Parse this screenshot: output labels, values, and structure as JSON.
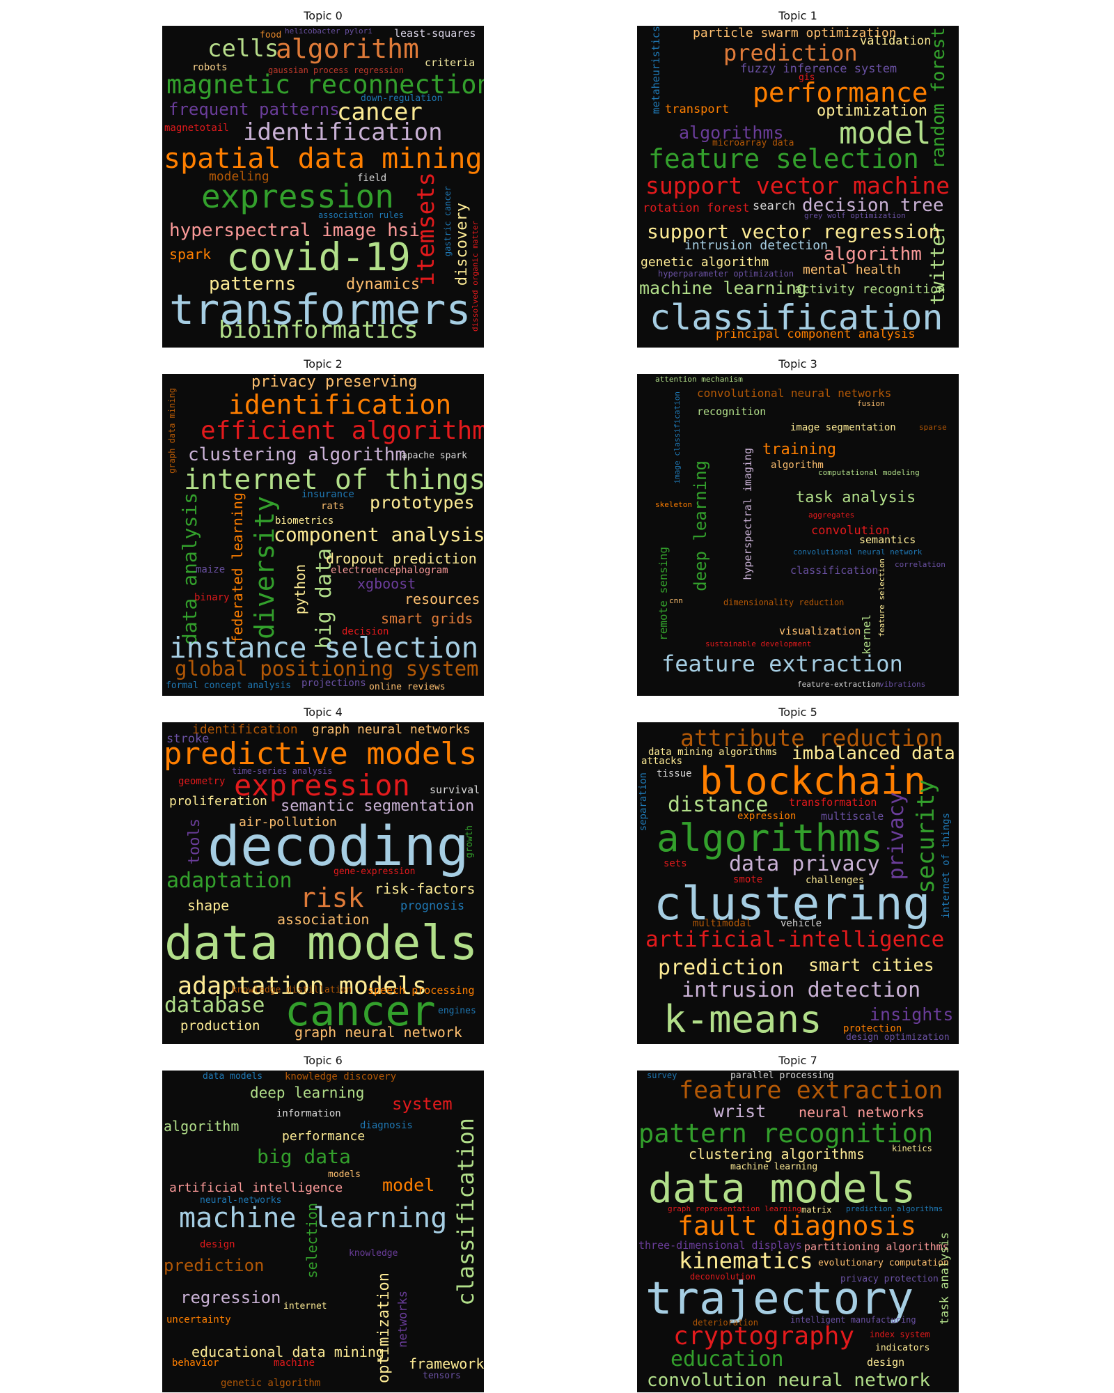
{
  "colors": {
    "background": "#0b0b0b",
    "figure": "#ffffff"
  },
  "panels": [
    {
      "title": "Topic 0",
      "words": [
        {
          "t": "food",
          "c": "#e6892b"
        },
        {
          "t": "helicobacter pylori",
          "c": "#6a51a3"
        },
        {
          "t": "least-squares",
          "c": "#ddd8ea"
        },
        {
          "t": "cells",
          "c": "#b7dd8b"
        },
        {
          "t": "algorithm",
          "c": "#e07b39"
        },
        {
          "t": "robots",
          "c": "#f7d08a"
        },
        {
          "t": "gaussian process regression",
          "c": "#c0392b"
        },
        {
          "t": "criteria",
          "c": "#f3e9a0"
        },
        {
          "t": "magnetic reconnection",
          "c": "#33a02c"
        },
        {
          "t": "down-regulation",
          "c": "#1f78b4"
        },
        {
          "t": "frequent patterns",
          "c": "#6a3d9a"
        },
        {
          "t": "cancer",
          "c": "#fdeb95"
        },
        {
          "t": "magnetotail",
          "c": "#e31a1c"
        },
        {
          "t": "identification",
          "c": "#cab2d6"
        },
        {
          "t": "spatial data mining",
          "c": "#ff7f00"
        },
        {
          "t": "modeling",
          "c": "#b35806"
        },
        {
          "t": "field",
          "c": "#d9d9d9"
        },
        {
          "t": "expression",
          "c": "#33a02c"
        },
        {
          "t": "itemsets",
          "c": "#e31a1c"
        },
        {
          "t": "gastric cancer",
          "c": "#1f78b4"
        },
        {
          "t": "association rules",
          "c": "#1f78b4"
        },
        {
          "t": "hyperspectral image hsi",
          "c": "#fb9a99"
        },
        {
          "t": "discovery",
          "c": "#fdeb95"
        },
        {
          "t": "spark",
          "c": "#ff7f00"
        },
        {
          "t": "covid-19",
          "c": "#b2df8a"
        },
        {
          "t": "dissolved organic matter",
          "c": "#e31a1c"
        },
        {
          "t": "patterns",
          "c": "#fdeb95"
        },
        {
          "t": "dynamics",
          "c": "#fdbf6f"
        },
        {
          "t": "transformers",
          "c": "#a6cee3"
        },
        {
          "t": "bioinformatics",
          "c": "#b2df8a"
        }
      ]
    },
    {
      "title": "Topic 1",
      "words": [
        {
          "t": "particle swarm optimization",
          "c": "#fdbf6f"
        },
        {
          "t": "validation",
          "c": "#fdeb95"
        },
        {
          "t": "metaheuristics",
          "c": "#1f78b4"
        },
        {
          "t": "prediction",
          "c": "#e07b39"
        },
        {
          "t": "random forest",
          "c": "#33a02c"
        },
        {
          "t": "fuzzy inference system",
          "c": "#6a51a3"
        },
        {
          "t": "gis",
          "c": "#e31a1c"
        },
        {
          "t": "performance",
          "c": "#ff7f00"
        },
        {
          "t": "transport",
          "c": "#ff7f00"
        },
        {
          "t": "optimization",
          "c": "#fdeb95"
        },
        {
          "t": "algorithms",
          "c": "#6a3d9a"
        },
        {
          "t": "microarray data",
          "c": "#b35806"
        },
        {
          "t": "model",
          "c": "#b2df8a"
        },
        {
          "t": "feature selection",
          "c": "#33a02c"
        },
        {
          "t": "support vector machine",
          "c": "#e31a1c"
        },
        {
          "t": "rotation forest",
          "c": "#e31a1c"
        },
        {
          "t": "search",
          "c": "#d9d9d9"
        },
        {
          "t": "decision tree",
          "c": "#cab2d6"
        },
        {
          "t": "grey wolf optimization",
          "c": "#6a51a3"
        },
        {
          "t": "twitter",
          "c": "#b2df8a"
        },
        {
          "t": "support vector regression",
          "c": "#fdeb95"
        },
        {
          "t": "intrusion detection",
          "c": "#a6cee3"
        },
        {
          "t": "genetic algorithm",
          "c": "#fdeb95"
        },
        {
          "t": "algorithm",
          "c": "#fb9a99"
        },
        {
          "t": "hyperparameter optimization",
          "c": "#6a51a3"
        },
        {
          "t": "mental health",
          "c": "#fdbf6f"
        },
        {
          "t": "machine learning",
          "c": "#b2df8a"
        },
        {
          "t": "activity recognition",
          "c": "#b2df8a"
        },
        {
          "t": "classification",
          "c": "#a6cee3"
        },
        {
          "t": "principal component analysis",
          "c": "#ff7f00"
        }
      ]
    },
    {
      "title": "Topic 2",
      "words": [
        {
          "t": "privacy preserving",
          "c": "#fdbf6f"
        },
        {
          "t": "identification",
          "c": "#ff7f00"
        },
        {
          "t": "efficient algorithm",
          "c": "#e31a1c"
        },
        {
          "t": "graph data mining",
          "c": "#b35806"
        },
        {
          "t": "clustering algorithm",
          "c": "#cab2d6"
        },
        {
          "t": "apache spark",
          "c": "#d9d9d9"
        },
        {
          "t": "internet of things",
          "c": "#b2df8a"
        },
        {
          "t": "insurance",
          "c": "#1f78b4"
        },
        {
          "t": "rats",
          "c": "#fdbf6f"
        },
        {
          "t": "prototypes",
          "c": "#fdeb95"
        },
        {
          "t": "data analysis",
          "c": "#33a02c"
        },
        {
          "t": "federated learning",
          "c": "#ff7f00"
        },
        {
          "t": "diversity",
          "c": "#33a02c"
        },
        {
          "t": "biometrics",
          "c": "#fdeb95"
        },
        {
          "t": "component analysis",
          "c": "#fdeb95"
        },
        {
          "t": "maize",
          "c": "#6a51a3"
        },
        {
          "t": "big data",
          "c": "#b2df8a"
        },
        {
          "t": "python",
          "c": "#fdeb95"
        },
        {
          "t": "dropout prediction",
          "c": "#fdeb95"
        },
        {
          "t": "electroencephalogram",
          "c": "#fb9a99"
        },
        {
          "t": "binary",
          "c": "#e31a1c"
        },
        {
          "t": "xgboost",
          "c": "#6a3d9a"
        },
        {
          "t": "resources",
          "c": "#fdbf6f"
        },
        {
          "t": "smart grids",
          "c": "#e07b39"
        },
        {
          "t": "decision",
          "c": "#e31a1c"
        },
        {
          "t": "instance selection",
          "c": "#a6cee3"
        },
        {
          "t": "global positioning system",
          "c": "#b35806"
        },
        {
          "t": "formal concept analysis",
          "c": "#1f78b4"
        },
        {
          "t": "projections",
          "c": "#6a51a3"
        },
        {
          "t": "online reviews",
          "c": "#fdbf6f"
        }
      ]
    },
    {
      "title": "Topic 3",
      "words": [
        {
          "t": "attention mechanism",
          "c": "#b2df8a"
        },
        {
          "t": "convolutional neural networks",
          "c": "#b35806"
        },
        {
          "t": "fusion",
          "c": "#fdbf6f"
        },
        {
          "t": "recognition",
          "c": "#b2df8a"
        },
        {
          "t": "image classification",
          "c": "#1f78b4"
        },
        {
          "t": "image segmentation",
          "c": "#fdeb95"
        },
        {
          "t": "sparse",
          "c": "#b35806"
        },
        {
          "t": "training",
          "c": "#ff7f00"
        },
        {
          "t": "algorithm",
          "c": "#fdbf6f"
        },
        {
          "t": "computational modeling",
          "c": "#b2df8a"
        },
        {
          "t": "deep learning",
          "c": "#33a02c"
        },
        {
          "t": "hyperspectral imaging",
          "c": "#cab2d6"
        },
        {
          "t": "skeleton",
          "c": "#ff7f00"
        },
        {
          "t": "task analysis",
          "c": "#b2df8a"
        },
        {
          "t": "aggregates",
          "c": "#e31a1c"
        },
        {
          "t": "convolution",
          "c": "#e31a1c"
        },
        {
          "t": "semantics",
          "c": "#fdeb95"
        },
        {
          "t": "convolutional neural network",
          "c": "#1f78b4"
        },
        {
          "t": "correlation",
          "c": "#6a51a3"
        },
        {
          "t": "remote sensing",
          "c": "#33a02c"
        },
        {
          "t": "classification",
          "c": "#6a51a3"
        },
        {
          "t": "feature selection",
          "c": "#fdeb95"
        },
        {
          "t": "cnn",
          "c": "#fdbf6f"
        },
        {
          "t": "dimensionality reduction",
          "c": "#b35806"
        },
        {
          "t": "kernel",
          "c": "#b2df8a"
        },
        {
          "t": "visualization",
          "c": "#fdbf6f"
        },
        {
          "t": "sustainable development",
          "c": "#e31a1c"
        },
        {
          "t": "feature extraction",
          "c": "#a6cee3"
        },
        {
          "t": "feature-extraction",
          "c": "#d9d9d9"
        },
        {
          "t": "vibrations",
          "c": "#6a51a3"
        }
      ]
    },
    {
      "title": "Topic 4",
      "words": [
        {
          "t": "identification",
          "c": "#b35806"
        },
        {
          "t": "graph neural networks",
          "c": "#fdbf6f"
        },
        {
          "t": "stroke",
          "c": "#6a51a3"
        },
        {
          "t": "predictive models",
          "c": "#ff7f00"
        },
        {
          "t": "time-series analysis",
          "c": "#6a51a3"
        },
        {
          "t": "geometry",
          "c": "#e31a1c"
        },
        {
          "t": "expression",
          "c": "#e31a1c"
        },
        {
          "t": "survival",
          "c": "#d9d9d9"
        },
        {
          "t": "proliferation",
          "c": "#fdeb95"
        },
        {
          "t": "semantic segmentation",
          "c": "#cab2d6"
        },
        {
          "t": "air-pollution",
          "c": "#fdbf6f"
        },
        {
          "t": "tools",
          "c": "#6a3d9a"
        },
        {
          "t": "decoding",
          "c": "#a6cee3"
        },
        {
          "t": "growth",
          "c": "#33a02c"
        },
        {
          "t": "gene-expression",
          "c": "#e31a1c"
        },
        {
          "t": "adaptation",
          "c": "#33a02c"
        },
        {
          "t": "risk",
          "c": "#e07b39"
        },
        {
          "t": "risk-factors",
          "c": "#fdeb95"
        },
        {
          "t": "shape",
          "c": "#fdeb95"
        },
        {
          "t": "prognosis",
          "c": "#1f78b4"
        },
        {
          "t": "association",
          "c": "#fdbf6f"
        },
        {
          "t": "data models",
          "c": "#b2df8a"
        },
        {
          "t": "adaptation models",
          "c": "#fdeb95"
        },
        {
          "t": "knowledge distillation",
          "c": "#b35806"
        },
        {
          "t": "speech processing",
          "c": "#ff7f00"
        },
        {
          "t": "database",
          "c": "#b2df8a"
        },
        {
          "t": "cancer",
          "c": "#33a02c"
        },
        {
          "t": "engines",
          "c": "#1f78b4"
        },
        {
          "t": "production",
          "c": "#fdeb95"
        },
        {
          "t": "graph neural network",
          "c": "#fdbf6f"
        }
      ]
    },
    {
      "title": "Topic 5",
      "words": [
        {
          "t": "attribute reduction",
          "c": "#b35806"
        },
        {
          "t": "data mining algorithms",
          "c": "#fdeb95"
        },
        {
          "t": "attacks",
          "c": "#fdeb95"
        },
        {
          "t": "imbalanced data",
          "c": "#fdeb95"
        },
        {
          "t": "tissue",
          "c": "#d9d9d9"
        },
        {
          "t": "blockchain",
          "c": "#ff7f00"
        },
        {
          "t": "separation",
          "c": "#1f78b4"
        },
        {
          "t": "distance",
          "c": "#b2df8a"
        },
        {
          "t": "transformation",
          "c": "#e31a1c"
        },
        {
          "t": "expression",
          "c": "#ff7f00"
        },
        {
          "t": "multiscale",
          "c": "#6a51a3"
        },
        {
          "t": "security",
          "c": "#33a02c"
        },
        {
          "t": "privacy",
          "c": "#6a3d9a"
        },
        {
          "t": "internet of things",
          "c": "#1f78b4"
        },
        {
          "t": "algorithms",
          "c": "#33a02c"
        },
        {
          "t": "sets",
          "c": "#e31a1c"
        },
        {
          "t": "data privacy",
          "c": "#cab2d6"
        },
        {
          "t": "smote",
          "c": "#e31a1c"
        },
        {
          "t": "challenges",
          "c": "#fdeb95"
        },
        {
          "t": "clustering",
          "c": "#a6cee3"
        },
        {
          "t": "multimodal",
          "c": "#b35806"
        },
        {
          "t": "vehicle",
          "c": "#d9d9d9"
        },
        {
          "t": "artificial-intelligence",
          "c": "#e31a1c"
        },
        {
          "t": "prediction",
          "c": "#fdeb95"
        },
        {
          "t": "smart cities",
          "c": "#fdeb95"
        },
        {
          "t": "intrusion detection",
          "c": "#cab2d6"
        },
        {
          "t": "k-means",
          "c": "#b2df8a"
        },
        {
          "t": "insights",
          "c": "#6a3d9a"
        },
        {
          "t": "protection",
          "c": "#ff7f00"
        },
        {
          "t": "design optimization",
          "c": "#6a51a3"
        }
      ]
    },
    {
      "title": "Topic 6",
      "words": [
        {
          "t": "data models",
          "c": "#1f78b4"
        },
        {
          "t": "knowledge discovery",
          "c": "#b35806"
        },
        {
          "t": "deep learning",
          "c": "#b2df8a"
        },
        {
          "t": "system",
          "c": "#e31a1c"
        },
        {
          "t": "information",
          "c": "#d9d9d9"
        },
        {
          "t": "algorithm",
          "c": "#b2df8a"
        },
        {
          "t": "diagnosis",
          "c": "#1f78b4"
        },
        {
          "t": "performance",
          "c": "#fdeb95"
        },
        {
          "t": "classification",
          "c": "#b2df8a"
        },
        {
          "t": "big data",
          "c": "#33a02c"
        },
        {
          "t": "models",
          "c": "#fdbf6f"
        },
        {
          "t": "artificial intelligence",
          "c": "#fb9a99"
        },
        {
          "t": "model",
          "c": "#ff7f00"
        },
        {
          "t": "neural-networks",
          "c": "#1f78b4"
        },
        {
          "t": "machine learning",
          "c": "#a6cee3"
        },
        {
          "t": "selection",
          "c": "#33a02c"
        },
        {
          "t": "design",
          "c": "#e31a1c"
        },
        {
          "t": "knowledge",
          "c": "#6a3d9a"
        },
        {
          "t": "prediction",
          "c": "#b35806"
        },
        {
          "t": "regression",
          "c": "#cab2d6"
        },
        {
          "t": "internet",
          "c": "#fdeb95"
        },
        {
          "t": "uncertainty",
          "c": "#ff7f00"
        },
        {
          "t": "optimization",
          "c": "#fdeb95"
        },
        {
          "t": "networks",
          "c": "#6a3d9a"
        },
        {
          "t": "educational data mining",
          "c": "#fdeb95"
        },
        {
          "t": "behavior",
          "c": "#ff7f00"
        },
        {
          "t": "machine",
          "c": "#e31a1c"
        },
        {
          "t": "framework",
          "c": "#fdeb95"
        },
        {
          "t": "tensors",
          "c": "#6a51a3"
        },
        {
          "t": "genetic algorithm",
          "c": "#b35806"
        }
      ]
    },
    {
      "title": "Topic 7",
      "words": [
        {
          "t": "survey",
          "c": "#1f78b4"
        },
        {
          "t": "parallel processing",
          "c": "#d9d9d9"
        },
        {
          "t": "feature extraction",
          "c": "#b35806"
        },
        {
          "t": "wrist",
          "c": "#cab2d6"
        },
        {
          "t": "neural networks",
          "c": "#fb9a99"
        },
        {
          "t": "pattern recognition",
          "c": "#33a02c"
        },
        {
          "t": "kinetics",
          "c": "#fdeb95"
        },
        {
          "t": "clustering algorithms",
          "c": "#fdeb95"
        },
        {
          "t": "machine learning",
          "c": "#fdeb95"
        },
        {
          "t": "data models",
          "c": "#b2df8a"
        },
        {
          "t": "graph representation learning",
          "c": "#e31a1c"
        },
        {
          "t": "matrix",
          "c": "#fdeb95"
        },
        {
          "t": "prediction algorithms",
          "c": "#1f78b4"
        },
        {
          "t": "fault diagnosis",
          "c": "#ff7f00"
        },
        {
          "t": "three-dimensional displays",
          "c": "#6a3d9a"
        },
        {
          "t": "partitioning algorithms",
          "c": "#fb9a99"
        },
        {
          "t": "task analysis",
          "c": "#b2df8a"
        },
        {
          "t": "kinematics",
          "c": "#fdeb95"
        },
        {
          "t": "evolutionary computation",
          "c": "#fdbf6f"
        },
        {
          "t": "deconvolution",
          "c": "#e31a1c"
        },
        {
          "t": "privacy protection",
          "c": "#6a51a3"
        },
        {
          "t": "trajectory",
          "c": "#a6cee3"
        },
        {
          "t": "deterioration",
          "c": "#b35806"
        },
        {
          "t": "intelligent manufacturing",
          "c": "#6a51a3"
        },
        {
          "t": "cryptography",
          "c": "#e31a1c"
        },
        {
          "t": "index system",
          "c": "#e31a1c"
        },
        {
          "t": "indicators",
          "c": "#fdeb95"
        },
        {
          "t": "education",
          "c": "#33a02c"
        },
        {
          "t": "design",
          "c": "#fdeb95"
        },
        {
          "t": "convolution neural network",
          "c": "#b2df8a"
        }
      ]
    }
  ]
}
